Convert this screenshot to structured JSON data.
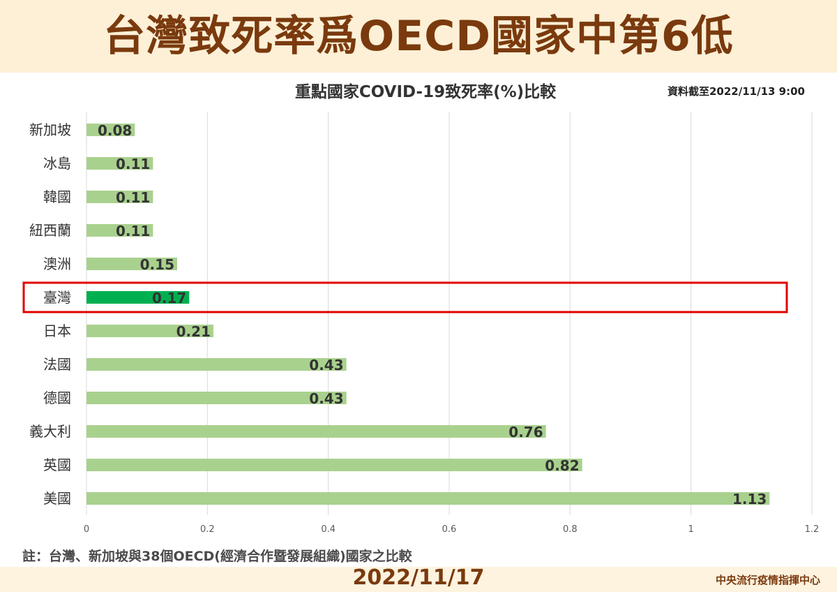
{
  "header": {
    "title": "台灣致死率爲OECD國家中第6低"
  },
  "chart_data": {
    "type": "bar",
    "orientation": "horizontal",
    "title": "重點國家COVID-19致死率(%)比較",
    "data_date": "資料截至2022/11/13 9:00",
    "categories": [
      "新加坡",
      "冰島",
      "韓國",
      "紐西蘭",
      "澳洲",
      "臺灣",
      "日本",
      "法國",
      "德國",
      "義大利",
      "英國",
      "美國"
    ],
    "values": [
      0.08,
      0.11,
      0.11,
      0.11,
      0.15,
      0.17,
      0.21,
      0.43,
      0.43,
      0.76,
      0.82,
      1.13
    ],
    "value_labels": [
      "0.08",
      "0.11",
      "0.11",
      "0.11",
      "0.15",
      "0.17",
      "0.21",
      "0.43",
      "0.43",
      "0.76",
      "0.82",
      "1.13"
    ],
    "xlim": [
      0,
      1.2
    ],
    "xticks": [
      0,
      0.2,
      0.4,
      0.6,
      0.8,
      1,
      1.2
    ],
    "xtick_labels": [
      "0",
      "0.2",
      "0.4",
      "0.6",
      "0.8",
      "1",
      "1.2"
    ],
    "highlight_category": "臺灣",
    "grid": true,
    "colors": {
      "bar": "#a9d18e",
      "highlight_bar": "#00b050",
      "highlight_box": "#e00000",
      "grid": "#d9d9d9"
    }
  },
  "footer": {
    "note": "註：台灣、新加坡與38個OECD(經濟合作暨發展組織)國家之比較",
    "date": "2022/11/17",
    "org": "中央流行疫情指揮中心"
  }
}
